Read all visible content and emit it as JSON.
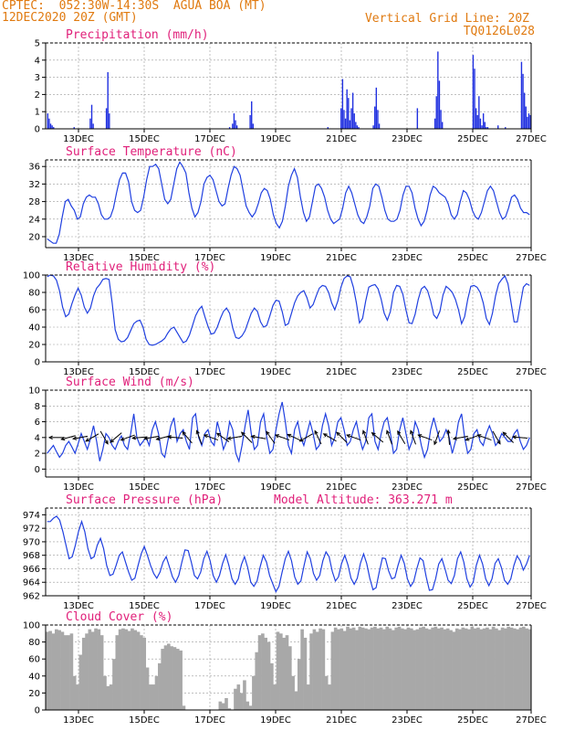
{
  "header": {
    "line1": "CPTEC:  052:30W-14:30S  AGUA BOA (MT)",
    "line2": "12DEC2020 20Z (GMT)",
    "grid_note": "Vertical Grid Line: 20Z",
    "code": "TQ0126L028"
  },
  "colors": {
    "header": "#e07a10",
    "titles": "#e0207a",
    "line": "#2040e0",
    "bars": "#2030e0",
    "cloud": "#a8a8a8"
  },
  "chart_data": [
    {
      "type": "bar",
      "title": "Precipitation (mm/h)",
      "x_labels": [
        "13DEC",
        "15DEC",
        "17DEC",
        "19DEC",
        "21DEC",
        "23DEC",
        "25DEC",
        "27DEC"
      ],
      "ylim": [
        0,
        5
      ],
      "yticks": [
        0,
        1,
        2,
        3,
        4,
        5
      ],
      "values": [
        0,
        0.9,
        0.6,
        0.3,
        0.2,
        0.1,
        0,
        0,
        0,
        0,
        0,
        0,
        0,
        0,
        0,
        0,
        0,
        0,
        0,
        0.1,
        0,
        0,
        0,
        0,
        0,
        0,
        0,
        0,
        0,
        0,
        0.6,
        1.4,
        0.3,
        0,
        0,
        0,
        0,
        0,
        0,
        0,
        0,
        1.2,
        3.3,
        0.9,
        0,
        0,
        0,
        0,
        0,
        0,
        0,
        0,
        0,
        0,
        0,
        0,
        0,
        0,
        0,
        0,
        0,
        0,
        0,
        0,
        0,
        0,
        0,
        0,
        0,
        0,
        0,
        0,
        0,
        0,
        0,
        0,
        0,
        0,
        0,
        0,
        0,
        0,
        0,
        0,
        0,
        0,
        0,
        0,
        0,
        0,
        0,
        0,
        0,
        0,
        0,
        0,
        0,
        0,
        0,
        0,
        0,
        0,
        0,
        0,
        0,
        0,
        0,
        0,
        0,
        0,
        0,
        0,
        0,
        0,
        0,
        0,
        0,
        0,
        0,
        0,
        0,
        0,
        0,
        0,
        0,
        0.1,
        0,
        0.3,
        0.9,
        0.5,
        0.2,
        0,
        0,
        0,
        0,
        0,
        0,
        0,
        0,
        0.8,
        1.6,
        0.3,
        0,
        0,
        0,
        0,
        0,
        0,
        0,
        0,
        0,
        0,
        0,
        0,
        0,
        0,
        0,
        0,
        0,
        0,
        0,
        0,
        0,
        0,
        0,
        0,
        0,
        0,
        0,
        0,
        0,
        0,
        0,
        0,
        0,
        0,
        0,
        0,
        0,
        0,
        0,
        0,
        0,
        0,
        0,
        0,
        0,
        0,
        0,
        0,
        0,
        0,
        0.1,
        0,
        0,
        0,
        0,
        0,
        0,
        0,
        0,
        1.2,
        2.9,
        1.1,
        0.6,
        2.3,
        1.8,
        0.5,
        1.2,
        2.1,
        0.9,
        0.4,
        0.2,
        0.1,
        0,
        0,
        0,
        0,
        0,
        0,
        0,
        0,
        0,
        0.2,
        1.3,
        2.4,
        1.1,
        0.3,
        0,
        0,
        0,
        0,
        0,
        0,
        0,
        0,
        0,
        0,
        0,
        0,
        0,
        0,
        0,
        0,
        0,
        0,
        0,
        0,
        0,
        0,
        0,
        0,
        0,
        1.2,
        0,
        0,
        0,
        0,
        0,
        0,
        0,
        0,
        0,
        0,
        0,
        0.6,
        1.9,
        4.5,
        2.8,
        1.1,
        0.4,
        0,
        0,
        0,
        0,
        0,
        0,
        0,
        0,
        0,
        0,
        0,
        0,
        0,
        0,
        0,
        0,
        0,
        0,
        0,
        0,
        4.3,
        3.5,
        1.2,
        0.8,
        1.9,
        0.6,
        0.2,
        0.9,
        0.4,
        0.1,
        0.1,
        0,
        0,
        0,
        0,
        0,
        0,
        0.2,
        0,
        0,
        0,
        0,
        0.1,
        0,
        0,
        0,
        0,
        0,
        0,
        0,
        0,
        0,
        0,
        3.9,
        3.2,
        2.1,
        1.3,
        0.7,
        0.9,
        0.8
      ]
    },
    {
      "type": "line",
      "title": "Surface Temperature (nC)",
      "x_labels": [
        "13DEC",
        "15DEC",
        "17DEC",
        "19DEC",
        "21DEC",
        "23DEC",
        "25DEC",
        "27DEC"
      ],
      "ylim": [
        17.5,
        37.5
      ],
      "yticks": [
        20,
        24,
        28,
        32,
        36
      ],
      "values": [
        19.5,
        19,
        18.5,
        18.5,
        20.5,
        24.5,
        28,
        28.5,
        27,
        26,
        24,
        24.5,
        27.5,
        29,
        29.5,
        29,
        29,
        27.5,
        25,
        24,
        24,
        24.5,
        26.5,
        30,
        33,
        34.5,
        34.5,
        32.5,
        28,
        26,
        25.5,
        26,
        29,
        33,
        36,
        36,
        36.5,
        35.5,
        32,
        28.5,
        27.5,
        28.5,
        32,
        35.5,
        37,
        36,
        34.5,
        30,
        26.5,
        24.5,
        25.5,
        28,
        32,
        33.5,
        34,
        33,
        30.5,
        28,
        27,
        27.5,
        31,
        34,
        36,
        35.5,
        34,
        30.5,
        27,
        25.5,
        24.5,
        25.5,
        27.5,
        30,
        31,
        30.5,
        28.5,
        25,
        23,
        22,
        23.5,
        27,
        31.5,
        34,
        35.5,
        33.5,
        29,
        25.5,
        23.5,
        24.5,
        28,
        31.5,
        32,
        31,
        29,
        26,
        24,
        23,
        23.5,
        24,
        26.5,
        30,
        31.5,
        30,
        27.5,
        25,
        23.5,
        23,
        24.5,
        27,
        31,
        32,
        31.5,
        29,
        26,
        24,
        23.5,
        23.5,
        24,
        26,
        29.5,
        31.5,
        31.5,
        30,
        26.5,
        24,
        22.5,
        23.5,
        26,
        29.5,
        31.5,
        31,
        30,
        29.5,
        29,
        27.5,
        25,
        24,
        25,
        28,
        30.5,
        30,
        28.5,
        26,
        24.5,
        24,
        25.5,
        28,
        30.5,
        31.5,
        30.5,
        28,
        25.5,
        24,
        24.5,
        26.5,
        29,
        29.5,
        28.5,
        26.5,
        25.5,
        25.5,
        25
      ]
    },
    {
      "type": "line",
      "title": "Relative Humidity (%)",
      "x_labels": [
        "13DEC",
        "15DEC",
        "17DEC",
        "19DEC",
        "21DEC",
        "23DEC",
        "25DEC",
        "27DEC"
      ],
      "ylim": [
        0,
        100
      ],
      "yticks": [
        0,
        20,
        40,
        60,
        80,
        100
      ],
      "values": [
        98,
        100,
        99,
        94,
        82,
        63,
        52,
        55,
        67,
        77,
        85,
        77,
        63,
        56,
        62,
        76,
        85,
        89,
        95,
        96,
        95,
        68,
        37,
        26,
        23,
        24,
        28,
        36,
        44,
        47,
        48,
        40,
        26,
        20,
        19,
        20,
        22,
        24,
        27,
        33,
        38,
        40,
        34,
        28,
        22,
        24,
        31,
        42,
        53,
        60,
        64,
        52,
        41,
        32,
        33,
        40,
        50,
        58,
        62,
        56,
        39,
        28,
        27,
        30,
        36,
        46,
        56,
        62,
        58,
        46,
        40,
        42,
        53,
        65,
        71,
        70,
        58,
        42,
        44,
        56,
        68,
        76,
        80,
        82,
        74,
        62,
        66,
        76,
        85,
        88,
        87,
        80,
        68,
        60,
        70,
        86,
        96,
        99,
        98,
        86,
        68,
        45,
        50,
        70,
        86,
        88,
        89,
        84,
        72,
        56,
        48,
        58,
        80,
        88,
        87,
        78,
        60,
        45,
        44,
        55,
        72,
        84,
        87,
        82,
        70,
        54,
        50,
        58,
        77,
        87,
        84,
        80,
        72,
        60,
        44,
        52,
        72,
        87,
        88,
        86,
        80,
        68,
        50,
        43,
        56,
        76,
        90,
        95,
        99,
        90,
        68,
        46,
        46,
        66,
        86,
        90,
        88
      ]
    },
    {
      "type": "line",
      "title": "Surface Wind (m/s)",
      "x_labels": [
        "13DEC",
        "15DEC",
        "17DEC",
        "19DEC",
        "21DEC",
        "23DEC",
        "25DEC",
        "27DEC"
      ],
      "ylim": [
        -1,
        10
      ],
      "yticks": [
        0,
        2,
        4,
        6,
        8,
        10
      ],
      "values": [
        2,
        2.5,
        3,
        2.2,
        1.5,
        2,
        3,
        3.5,
        2.8,
        2,
        3.2,
        4.5,
        3.5,
        2.5,
        3.8,
        5.5,
        3.5,
        1,
        2.5,
        4.5,
        4,
        3,
        2.5,
        3.5,
        4.2,
        3,
        2.5,
        4.5,
        7,
        4,
        3,
        3.5,
        4,
        3,
        5,
        6,
        4.5,
        2,
        1.5,
        3.5,
        5.5,
        6.5,
        3.5,
        4.5,
        5,
        3.5,
        2.5,
        6.5,
        7,
        4,
        3,
        4.5,
        5,
        3.5,
        3,
        6,
        4.5,
        2.5,
        3.5,
        6,
        5,
        2,
        1,
        3,
        5.5,
        7.5,
        4.5,
        2.5,
        3,
        6,
        7,
        4,
        2,
        2.5,
        5,
        7,
        8.5,
        6,
        3,
        2,
        5,
        6,
        4,
        3,
        4.5,
        6,
        4.5,
        2.5,
        3,
        5.5,
        7,
        5.5,
        3,
        4,
        6,
        6.5,
        5,
        3,
        3.5,
        5,
        6,
        4,
        2.5,
        3.5,
        6.5,
        7,
        3.5,
        2.5,
        4.5,
        6,
        6.5,
        4.5,
        2,
        2.5,
        5,
        6.5,
        4.5,
        2.5,
        3.5,
        6,
        5,
        3,
        1.5,
        2.5,
        5,
        6.5,
        5,
        3.5,
        4,
        5,
        4,
        2,
        3.5,
        6,
        7,
        4,
        2,
        2.5,
        4.5,
        5,
        3.5,
        3,
        4.5,
        5.5,
        4.5,
        3,
        3.5,
        4.5,
        4,
        3.5,
        3.5,
        4.5,
        5,
        3.5,
        2.5,
        3,
        4
      ],
      "arrows_deg": [
        180,
        165,
        170,
        150,
        60,
        140,
        160,
        175,
        170,
        165,
        185,
        230,
        250,
        200,
        215,
        170,
        225,
        190,
        235,
        200,
        205,
        150,
        245,
        210,
        225,
        200,
        250,
        220,
        250,
        240,
        250,
        200,
        110,
        265,
        170,
        160,
        200,
        60,
        225,
        185
      ]
    },
    {
      "type": "line",
      "title": "Surface Pressure (hPa)",
      "annotation": "Model Altitude: 363.271  m",
      "x_labels": [
        "13DEC",
        "15DEC",
        "17DEC",
        "19DEC",
        "21DEC",
        "23DEC",
        "25DEC",
        "27DEC"
      ],
      "ylim": [
        962,
        975
      ],
      "yticks": [
        962,
        964,
        966,
        968,
        970,
        972,
        974
      ],
      "values": [
        973,
        973,
        973.5,
        973.8,
        973.2,
        971.5,
        969.5,
        967.5,
        967.8,
        969.5,
        971.5,
        973,
        971.5,
        969,
        967.5,
        967.8,
        969.5,
        970.5,
        969,
        966.5,
        965,
        965.2,
        966.5,
        968,
        968.5,
        967,
        965.5,
        964.3,
        964.6,
        966.5,
        968.2,
        969.3,
        968,
        966.5,
        965.3,
        964.6,
        965.5,
        967,
        967.8,
        966.3,
        964.8,
        964,
        965,
        967,
        968.8,
        968.7,
        967,
        965,
        964.5,
        965.5,
        967.5,
        968.6,
        967.2,
        965,
        964,
        965,
        966.8,
        968.1,
        966.5,
        964.5,
        963.7,
        964.5,
        966.6,
        967.8,
        966.2,
        964,
        963.4,
        964.2,
        966.3,
        968,
        967,
        965,
        963.8,
        962.6,
        963.4,
        965.5,
        967.5,
        968.6,
        967.2,
        964.8,
        963.7,
        964.2,
        966.5,
        968.5,
        967.5,
        965.3,
        964.3,
        965,
        967.2,
        968.5,
        967.8,
        965.6,
        964.2,
        964.8,
        966.8,
        968,
        966.6,
        964.6,
        963.7,
        964.6,
        966.8,
        968.2,
        966.8,
        964.6,
        962.9,
        963.2,
        965.5,
        967.6,
        967.5,
        965.7,
        964.5,
        964.7,
        966.5,
        968,
        966.8,
        964.5,
        963.4,
        964.1,
        966,
        967.6,
        967.2,
        964.8,
        962.8,
        962.9,
        964.5,
        966.7,
        967.5,
        966,
        964.3,
        963.8,
        965,
        967.5,
        968.5,
        967,
        964.5,
        963.3,
        964,
        966.5,
        968,
        966.7,
        964.5,
        963.5,
        964.5,
        966.8,
        967.5,
        966.2,
        964.3,
        963.7,
        964.5,
        966.5,
        967.9,
        967.2,
        965.8,
        966.7,
        968
      ]
    },
    {
      "type": "area",
      "title": "Cloud Cover (%)",
      "x_labels": [
        "13DEC",
        "15DEC",
        "17DEC",
        "19DEC",
        "21DEC",
        "23DEC",
        "25DEC",
        "27DEC"
      ],
      "ylim": [
        0,
        100
      ],
      "yticks": [
        0,
        20,
        40,
        60,
        80,
        100
      ],
      "values": [
        92,
        93,
        90,
        95,
        94,
        92,
        88,
        88,
        90,
        40,
        30,
        65,
        85,
        90,
        95,
        92,
        96,
        95,
        88,
        40,
        28,
        30,
        60,
        88,
        95,
        96,
        95,
        93,
        96,
        94,
        92,
        88,
        85,
        50,
        30,
        30,
        40,
        55,
        72,
        76,
        78,
        75,
        74,
        72,
        70,
        5,
        0,
        0,
        0,
        0,
        0,
        0,
        0,
        0,
        0,
        0,
        0,
        10,
        8,
        14,
        2,
        0,
        25,
        30,
        20,
        35,
        10,
        5,
        40,
        68,
        88,
        90,
        85,
        80,
        55,
        30,
        92,
        90,
        85,
        88,
        75,
        40,
        22,
        60,
        95,
        85,
        30,
        90,
        95,
        92,
        96,
        95,
        40,
        30,
        92,
        97,
        95,
        96,
        93,
        98,
        96,
        97,
        94,
        98,
        97,
        96,
        95,
        97,
        98,
        96,
        97,
        95,
        98,
        96,
        94,
        97,
        98,
        96,
        95,
        97,
        96,
        94,
        95,
        97,
        98,
        96,
        95,
        97,
        98,
        96,
        97,
        95,
        96,
        94,
        92,
        96,
        95,
        97,
        96,
        95,
        98,
        96,
        97,
        95,
        96,
        97,
        95,
        98,
        96,
        94,
        97,
        96,
        98,
        97,
        96,
        95,
        97,
        98,
        96,
        95
      ]
    }
  ]
}
